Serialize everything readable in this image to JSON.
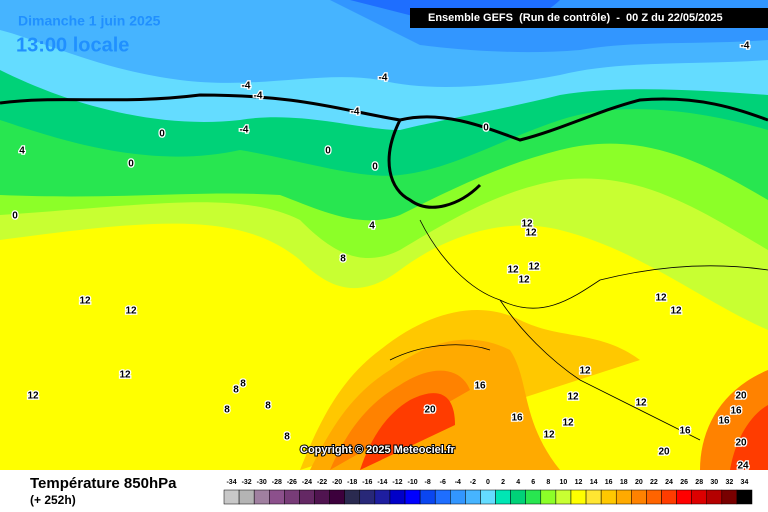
{
  "header": {
    "date": "Dimanche 1 juin 2025",
    "time": "13:00 locale",
    "run": "Ensemble GEFS  (Run de contrôle)  -  00 Z du 22/05/2025"
  },
  "copyright": "Copyright © 2025 Meteociel.fr",
  "legend": {
    "title": "Température 850hPa",
    "lead": "(+ 252h)",
    "ticks": [
      -34,
      -32,
      -30,
      -28,
      -26,
      -24,
      -22,
      -20,
      -18,
      -16,
      -14,
      -12,
      -10,
      -8,
      -6,
      -4,
      -2,
      0,
      2,
      4,
      6,
      8,
      10,
      12,
      14,
      16,
      18,
      20,
      22,
      24,
      26,
      28,
      30,
      32,
      34
    ],
    "colors": [
      "#c8c8c8",
      "#b4b4b4",
      "#a080a0",
      "#8c508c",
      "#783c78",
      "#642864",
      "#501450",
      "#3c003c",
      "#2a2a50",
      "#282878",
      "#1e1ea0",
      "#0000c8",
      "#0000ff",
      "#0a46f0",
      "#1e6eff",
      "#3296ff",
      "#46b4ff",
      "#64dcff",
      "#00e6b4",
      "#00d278",
      "#28e650",
      "#8cff28",
      "#c8ff32",
      "#ffff00",
      "#ffe632",
      "#ffc800",
      "#ffaa00",
      "#ff8200",
      "#ff6400",
      "#ff3c00",
      "#ff0000",
      "#dc0000",
      "#b40000",
      "#780000",
      "#000000"
    ]
  },
  "map": {
    "contour_labels": [
      "-4",
      "-4",
      "-4",
      "-4",
      "-4",
      "-4",
      "0",
      "0",
      "0",
      "0",
      "0",
      "0",
      "4",
      "4",
      "8",
      "12",
      "12",
      "12",
      "12",
      "12",
      "12",
      "12",
      "12",
      "12",
      "12",
      "12",
      "12",
      "12",
      "12",
      "12",
      "12",
      "8",
      "8",
      "8",
      "8",
      "8",
      "16",
      "16",
      "16",
      "16",
      "16",
      "20",
      "20",
      "20",
      "20",
      "24"
    ]
  }
}
